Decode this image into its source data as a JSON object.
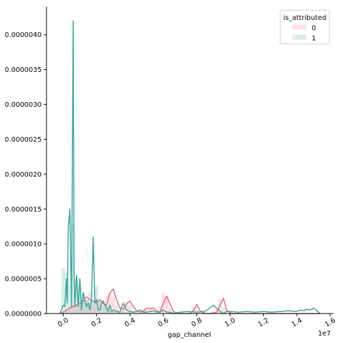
{
  "chart_data": {
    "type": "area",
    "xlabel": "gap_channel",
    "x_offset_label": "1e7",
    "xlim": [
      -0.1,
      1.62
    ],
    "ylim": [
      0,
      4.4e-06
    ],
    "x_ticks": [
      {
        "value": 0.0,
        "label": "0.0"
      },
      {
        "value": 0.2,
        "label": "0.2"
      },
      {
        "value": 0.4,
        "label": "0.4"
      },
      {
        "value": 0.6,
        "label": "0.6"
      },
      {
        "value": 0.8,
        "label": "0.8"
      },
      {
        "value": 1.0,
        "label": "1.0"
      },
      {
        "value": 1.2,
        "label": "1.2"
      },
      {
        "value": 1.4,
        "label": "1.4"
      },
      {
        "value": 1.6,
        "label": "1.6"
      }
    ],
    "y_ticks": [
      {
        "value": 0.0,
        "label": "0.0000000"
      },
      {
        "value": 5e-07,
        "label": "0.0000005"
      },
      {
        "value": 1e-06,
        "label": "0.0000010"
      },
      {
        "value": 1.5e-06,
        "label": "0.0000015"
      },
      {
        "value": 2e-06,
        "label": "0.0000020"
      },
      {
        "value": 2.5e-06,
        "label": "0.0000025"
      },
      {
        "value": 3e-06,
        "label": "0.0000030"
      },
      {
        "value": 3.5e-06,
        "label": "0.0000035"
      },
      {
        "value": 4e-06,
        "label": "0.0000040"
      }
    ],
    "legend": {
      "title": "is_attributed",
      "placement": "top-right",
      "entries": [
        "0",
        "1"
      ]
    },
    "colors": {
      "0": "#f0657a",
      "1": "#36a79a"
    },
    "grid": false,
    "series": [
      {
        "name": "0",
        "kde_x": [
          -0.02,
          0.0,
          0.02,
          0.04,
          0.06,
          0.08,
          0.1,
          0.12,
          0.14,
          0.16,
          0.18,
          0.2,
          0.22,
          0.24,
          0.26,
          0.28,
          0.3,
          0.32,
          0.34,
          0.36,
          0.38,
          0.4,
          0.42,
          0.44,
          0.46,
          0.48,
          0.5,
          0.52,
          0.54,
          0.56,
          0.58,
          0.6,
          0.62,
          0.64,
          0.66,
          0.68,
          0.7,
          0.72,
          0.74,
          0.76,
          0.78,
          0.8,
          0.82,
          0.84,
          0.86,
          0.88,
          0.9,
          0.92,
          0.94,
          0.96,
          0.98,
          1.0,
          1.02,
          1.1,
          1.2,
          1.3,
          1.4,
          1.5,
          1.54
        ],
        "kde_y": [
          0,
          2e-08,
          5e-08,
          8e-08,
          1e-07,
          1.2e-07,
          1.5e-07,
          1.8e-07,
          2.4e-07,
          2e-07,
          1.8e-07,
          1.6e-07,
          2e-07,
          1.4e-07,
          1.2e-07,
          3e-07,
          3.5e-07,
          2e-07,
          8e-08,
          6e-08,
          1.4e-07,
          1.8e-07,
          1e-07,
          4e-08,
          2e-08,
          3e-08,
          8e-08,
          7e-08,
          8e-08,
          4e-08,
          2e-08,
          1.5e-07,
          2.5e-07,
          1.4e-07,
          3e-08,
          1e-08,
          0.0,
          0.0,
          0.0,
          0.0,
          4e-08,
          1.3e-07,
          4e-08,
          1e-08,
          0.0,
          0.0,
          1e-08,
          2e-08,
          1.2e-07,
          2.2e-07,
          5e-08,
          1e-08,
          0.0,
          0.0,
          0.0,
          0.0,
          0.0,
          0.0,
          0.0
        ],
        "hist_x": [
          0.0,
          0.02,
          0.04,
          0.06,
          0.08,
          0.1,
          0.12,
          0.14,
          0.16,
          0.18,
          0.2,
          0.22,
          0.24,
          0.26,
          0.28,
          0.3,
          0.32,
          0.34,
          0.36,
          0.38,
          0.4,
          0.42,
          0.44,
          0.46,
          0.48,
          0.5,
          0.52,
          0.54,
          0.56,
          0.58,
          0.6,
          0.62,
          0.64,
          0.66,
          0.68,
          0.7,
          0.72,
          0.74,
          0.76,
          0.78,
          0.8,
          0.82,
          0.84,
          0.86,
          0.88,
          0.9,
          0.92,
          0.94,
          0.96,
          0.98,
          1.0
        ],
        "hist_y": [
          2e-08,
          6e-08,
          1e-07,
          1.2e-07,
          1.2e-07,
          1.6e-07,
          1.8e-07,
          2e-07,
          1.8e-07,
          1.6e-07,
          1.8e-07,
          1.6e-07,
          1.2e-07,
          2.5e-07,
          3e-07,
          2.4e-07,
          1.2e-07,
          6e-08,
          1e-07,
          1.6e-07,
          1.2e-07,
          4e-08,
          2e-08,
          3e-08,
          7e-08,
          6e-08,
          8e-08,
          4e-08,
          2e-08,
          1e-07,
          3e-07,
          2.5e-07,
          8e-08,
          2e-08,
          0.0,
          0.0,
          0.0,
          0.0,
          2e-08,
          1e-07,
          5e-08,
          1e-08,
          0.0,
          0.0,
          0.0,
          1e-08,
          6e-08,
          2e-07,
          8e-08,
          2e-08,
          0.0
        ]
      },
      {
        "name": "1",
        "kde_x": [
          -0.02,
          0.0,
          0.01,
          0.02,
          0.025,
          0.03,
          0.04,
          0.05,
          0.06,
          0.065,
          0.07,
          0.08,
          0.09,
          0.1,
          0.11,
          0.12,
          0.13,
          0.14,
          0.15,
          0.16,
          0.17,
          0.18,
          0.19,
          0.2,
          0.21,
          0.22,
          0.23,
          0.24,
          0.25,
          0.26,
          0.27,
          0.28,
          0.29,
          0.3,
          0.32,
          0.34,
          0.36,
          0.38,
          0.4,
          0.42,
          0.44,
          0.46,
          0.48,
          0.5,
          0.52,
          0.54,
          0.56,
          0.58,
          0.6,
          0.62,
          0.64,
          0.66,
          0.7,
          0.75,
          0.8,
          0.85,
          0.9,
          0.94,
          0.96,
          0.97,
          0.98,
          1.0,
          1.05,
          1.1,
          1.15,
          1.2,
          1.25,
          1.3,
          1.35,
          1.4,
          1.42,
          1.44,
          1.46,
          1.48,
          1.5,
          1.52,
          1.54
        ],
        "kde_y": [
          0,
          1.2e-07,
          1e-07,
          5e-07,
          1.5e-07,
          1.2e-06,
          1.5e-06,
          1e-07,
          4.2e-06,
          6e-07,
          1e-07,
          5.5e-07,
          1e-07,
          5e-07,
          5e-08,
          3e-07,
          1.8e-07,
          1e-07,
          1.5e-07,
          5e-08,
          2e-07,
          1.1e-06,
          1.5e-07,
          2e-07,
          5e-08,
          5e-08,
          1.5e-07,
          1.8e-07,
          1.2e-07,
          8e-08,
          3e-08,
          1.2e-07,
          3e-08,
          5e-08,
          3e-08,
          2e-08,
          1.5e-07,
          5e-08,
          3e-08,
          2e-08,
          3e-08,
          5e-08,
          2e-08,
          2e-08,
          3e-08,
          4e-08,
          2e-08,
          2e-08,
          5e-08,
          2e-08,
          2e-08,
          0.0,
          2e-08,
          3e-08,
          2e-08,
          3e-08,
          1.2e-07,
          3e-08,
          0.0,
          2e-08,
          3e-08,
          3e-08,
          2e-08,
          3e-08,
          2e-08,
          3e-08,
          2e-08,
          3e-08,
          4e-08,
          3e-08,
          5e-08,
          4e-08,
          6e-08,
          5e-08,
          8e-08,
          4e-08,
          0.0
        ],
        "hist_x": [
          0.0,
          0.02,
          0.04,
          0.06,
          0.08,
          0.1,
          0.12,
          0.14,
          0.16,
          0.18,
          0.2,
          0.22,
          0.24,
          0.26,
          0.28,
          0.3,
          0.32,
          0.34,
          0.36,
          0.38,
          0.4
        ],
        "hist_y": [
          6.5e-07,
          6e-07,
          4e-07,
          1.3e-06,
          5e-07,
          4e-07,
          3e-07,
          2e-07,
          3e-07,
          2e-07,
          4e-07,
          1.8e-07,
          1.2e-07,
          1e-07,
          5e-08,
          5e-08,
          4e-08,
          3e-08,
          3e-08,
          2e-08,
          2e-08
        ]
      }
    ]
  }
}
